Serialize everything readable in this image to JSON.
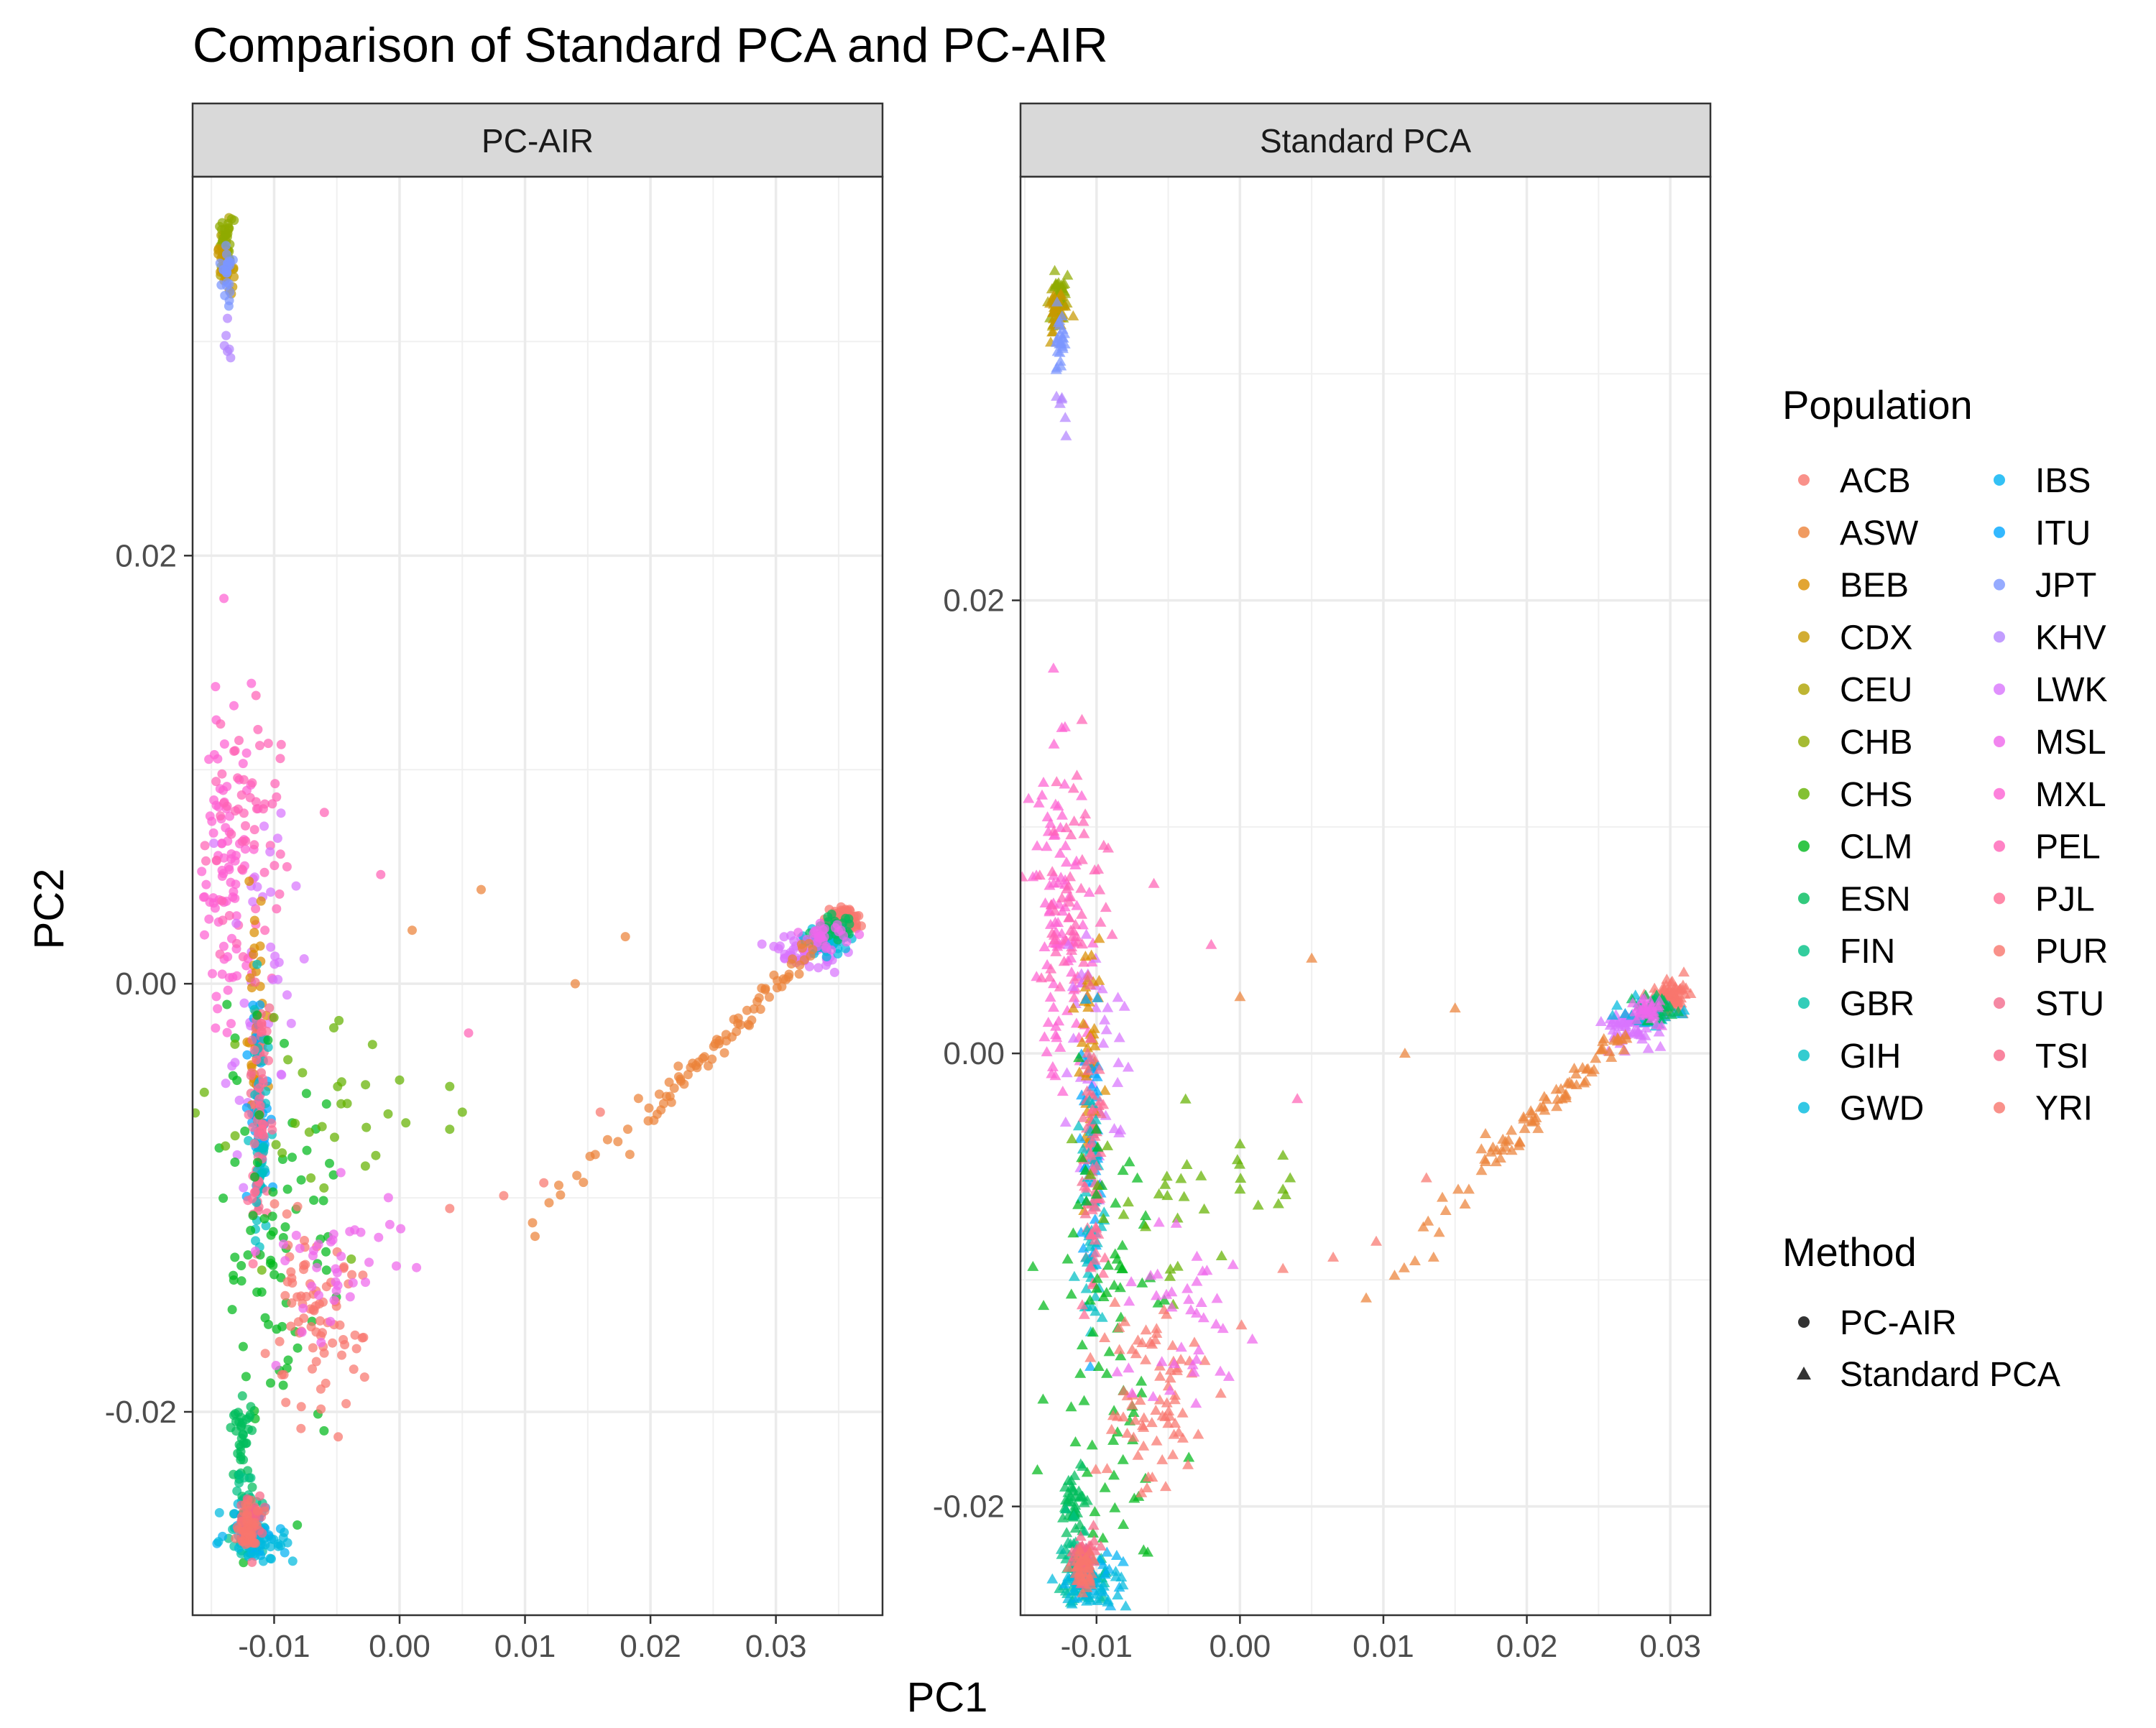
{
  "chart_data": {
    "type": "scatter",
    "title": "Comparison of Standard PCA and PC-AIR",
    "xlabel": "PC1",
    "ylabel": "PC2",
    "grid": true,
    "legend_position": "right",
    "legends": {
      "population_title": "Population",
      "method_title": "Method"
    },
    "populations": [
      {
        "name": "ACB",
        "color": "#F8766D"
      },
      {
        "name": "ASW",
        "color": "#EC8239"
      },
      {
        "name": "BEB",
        "color": "#DB8E00"
      },
      {
        "name": "CDX",
        "color": "#C79800"
      },
      {
        "name": "CEU",
        "color": "#AEA200"
      },
      {
        "name": "CHB",
        "color": "#8FAA00"
      },
      {
        "name": "CHS",
        "color": "#64B200"
      },
      {
        "name": "CLM",
        "color": "#00B81B"
      },
      {
        "name": "ESN",
        "color": "#00BD5C"
      },
      {
        "name": "FIN",
        "color": "#00C085"
      },
      {
        "name": "GBR",
        "color": "#00C1A7"
      },
      {
        "name": "GIH",
        "color": "#00BFC4"
      },
      {
        "name": "GWD",
        "color": "#00BADE"
      },
      {
        "name": "IBS",
        "color": "#00B2F3"
      },
      {
        "name": "ITU",
        "color": "#00A6FF"
      },
      {
        "name": "JPT",
        "color": "#7C96FF"
      },
      {
        "name": "KHV",
        "color": "#B385FF"
      },
      {
        "name": "LWK",
        "color": "#D874FD"
      },
      {
        "name": "MSL",
        "color": "#EF67EB"
      },
      {
        "name": "MXL",
        "color": "#FD61D3"
      },
      {
        "name": "PEL",
        "color": "#FF63B6"
      },
      {
        "name": "PJL",
        "color": "#FF6B94"
      },
      {
        "name": "PUR",
        "color": "#F8766D"
      },
      {
        "name": "STU",
        "color": "#F36A8C"
      },
      {
        "name": "TSI",
        "color": "#F76687"
      },
      {
        "name": "YRI",
        "color": "#F8766D"
      }
    ],
    "methods": [
      {
        "name": "PC-AIR",
        "shape": "circle"
      },
      {
        "name": "Standard PCA",
        "shape": "triangle"
      }
    ],
    "panels": [
      {
        "method": "PC-AIR",
        "strip_label": "PC-AIR",
        "xlim": [
          -0.0165,
          0.0385
        ],
        "ylim": [
          -0.0295,
          0.0377
        ],
        "xticks": [
          -0.01,
          0.0,
          0.01,
          0.02,
          0.03
        ],
        "xtick_labels": [
          "-0.01",
          "0.00",
          "0.01",
          "0.02",
          "0.03"
        ],
        "yticks": [
          -0.02,
          0.0,
          0.02
        ],
        "ytick_labels": [
          "-0.02",
          "0.00",
          "0.02"
        ],
        "clusters": [
          {
            "pop": "CEU",
            "x": -0.0139,
            "y": 0.034,
            "sx": 0.0003,
            "sy": 0.0006,
            "n": 30
          },
          {
            "pop": "CHB",
            "x": -0.0138,
            "y": 0.0345,
            "sx": 0.0003,
            "sy": 0.0006,
            "n": 30
          },
          {
            "pop": "CDX",
            "x": -0.0139,
            "y": 0.0335,
            "sx": 0.0003,
            "sy": 0.0006,
            "n": 25
          },
          {
            "pop": "JPT",
            "x": -0.0138,
            "y": 0.033,
            "sx": 0.0002,
            "sy": 0.0007,
            "n": 25
          },
          {
            "pop": "KHV",
            "x": -0.0137,
            "y": 0.03,
            "sx": 0.0002,
            "sy": 0.0006,
            "n": 6
          },
          {
            "pop": "MXL",
            "x": -0.0135,
            "y": 0.006,
            "sx": 0.0012,
            "sy": 0.004,
            "n": 90
          },
          {
            "pop": "PEL",
            "x": -0.0125,
            "y": 0.007,
            "sx": 0.0015,
            "sy": 0.0035,
            "n": 60
          },
          {
            "pop": "LWK",
            "x": -0.011,
            "y": 0.0,
            "sx": 0.0014,
            "sy": 0.004,
            "n": 40
          },
          {
            "pop": "BEB",
            "x": -0.0115,
            "y": -0.002,
            "sx": 0.0004,
            "sy": 0.0025,
            "n": 40
          },
          {
            "pop": "ITU",
            "x": -0.0112,
            "y": -0.006,
            "sx": 0.0004,
            "sy": 0.003,
            "n": 45
          },
          {
            "pop": "STU",
            "x": -0.0113,
            "y": -0.004,
            "sx": 0.0004,
            "sy": 0.0025,
            "n": 35
          },
          {
            "pop": "GIH",
            "x": -0.0112,
            "y": -0.008,
            "sx": 0.0004,
            "sy": 0.003,
            "n": 45
          },
          {
            "pop": "PJL",
            "x": -0.0112,
            "y": -0.007,
            "sx": 0.0004,
            "sy": 0.0025,
            "n": 40
          },
          {
            "pop": "CLM",
            "x": -0.0095,
            "y": -0.012,
            "sx": 0.0025,
            "sy": 0.005,
            "n": 80
          },
          {
            "pop": "CHS",
            "x": -0.007,
            "y": -0.007,
            "sx": 0.004,
            "sy": 0.0025,
            "n": 30
          },
          {
            "pop": "PUR",
            "x": -0.007,
            "y": -0.016,
            "sx": 0.002,
            "sy": 0.002,
            "n": 80
          },
          {
            "pop": "MSL",
            "x": -0.005,
            "y": -0.013,
            "sx": 0.003,
            "sy": 0.002,
            "n": 40
          },
          {
            "pop": "ESN",
            "x": -0.0125,
            "y": -0.0215,
            "sx": 0.0004,
            "sy": 0.001,
            "n": 40
          },
          {
            "pop": "FIN",
            "x": -0.0122,
            "y": -0.0245,
            "sx": 0.0006,
            "sy": 0.0008,
            "n": 35
          },
          {
            "pop": "GBR",
            "x": -0.0118,
            "y": -0.026,
            "sx": 0.0008,
            "sy": 0.0006,
            "n": 35
          },
          {
            "pop": "IBS",
            "x": -0.0115,
            "y": -0.0255,
            "sx": 0.0012,
            "sy": 0.0006,
            "n": 35
          },
          {
            "pop": "GWD",
            "x": -0.0112,
            "y": -0.026,
            "sx": 0.0015,
            "sy": 0.0006,
            "n": 30
          },
          {
            "pop": "TSI",
            "x": -0.0118,
            "y": -0.025,
            "sx": 0.0005,
            "sy": 0.0006,
            "n": 40
          },
          {
            "pop": "YRI",
            "x": -0.012,
            "y": -0.0255,
            "sx": 0.0005,
            "sy": 0.0005,
            "n": 40
          },
          {
            "pop": "ACB",
            "x": 0.0355,
            "y": 0.003,
            "sx": 0.0006,
            "sy": 0.0003,
            "n": 60
          },
          {
            "pop": "YRI",
            "x": 0.0353,
            "y": 0.0028,
            "sx": 0.0006,
            "sy": 0.0003,
            "n": 40
          },
          {
            "pop": "LWK",
            "x": 0.0325,
            "y": 0.0015,
            "sx": 0.0012,
            "sy": 0.0004,
            "n": 60
          },
          {
            "pop": "GWD",
            "x": 0.034,
            "y": 0.002,
            "sx": 0.001,
            "sy": 0.0003,
            "n": 40
          },
          {
            "pop": "ESN",
            "x": 0.0345,
            "y": 0.0025,
            "sx": 0.0008,
            "sy": 0.0003,
            "n": 30
          },
          {
            "pop": "MSL",
            "x": 0.0338,
            "y": 0.0022,
            "sx": 0.0008,
            "sy": 0.0003,
            "n": 30
          }
        ],
        "lines": [
          {
            "pop": "ASW",
            "x0": 0.02,
            "y0": -0.006,
            "x1": 0.033,
            "y1": 0.0015,
            "n": 70,
            "jitter": 0.0003
          },
          {
            "pop": "ASW",
            "x0": 0.011,
            "y0": -0.011,
            "x1": 0.02,
            "y1": -0.006,
            "n": 14,
            "jitter": 0.0006
          }
        ],
        "points": [
          {
            "pop": "MXL",
            "x": -0.014,
            "y": 0.018
          },
          {
            "pop": "PEL",
            "x": -0.006,
            "y": 0.008
          },
          {
            "pop": "PEL",
            "x": -0.0015,
            "y": 0.0051
          },
          {
            "pop": "ASW",
            "x": 0.001,
            "y": 0.0025
          },
          {
            "pop": "ASW",
            "x": 0.0065,
            "y": 0.0044
          },
          {
            "pop": "ASW",
            "x": 0.018,
            "y": 0.0022
          },
          {
            "pop": "ASW",
            "x": 0.014,
            "y": 0.0
          },
          {
            "pop": "ASW",
            "x": 0.0108,
            "y": -0.0118
          },
          {
            "pop": "PUR",
            "x": 0.0083,
            "y": -0.0099
          },
          {
            "pop": "PUR",
            "x": 0.0115,
            "y": -0.0093
          },
          {
            "pop": "PUR",
            "x": 0.004,
            "y": -0.0105
          },
          {
            "pop": "PEL",
            "x": 0.0055,
            "y": -0.0023
          },
          {
            "pop": "CHS",
            "x": 0.0,
            "y": -0.0045
          },
          {
            "pop": "CHS",
            "x": 0.004,
            "y": -0.0048
          },
          {
            "pop": "CHS",
            "x": 0.005,
            "y": -0.006
          },
          {
            "pop": "CHS",
            "x": 0.004,
            "y": -0.0068
          },
          {
            "pop": "CHS",
            "x": 0.0005,
            "y": -0.0065
          },
          {
            "pop": "PUR",
            "x": 0.016,
            "y": -0.006
          }
        ]
      },
      {
        "method": "Standard PCA",
        "strip_label": "Standard PCA",
        "xlim": [
          -0.0153,
          0.0328
        ],
        "ylim": [
          -0.0248,
          0.0387
        ],
        "xticks": [
          -0.01,
          0.0,
          0.01,
          0.02,
          0.03
        ],
        "xtick_labels": [
          "-0.01",
          "0.00",
          "0.01",
          "0.02",
          "0.03"
        ],
        "yticks": [
          -0.02,
          0.0,
          0.02
        ],
        "ytick_labels": [
          "-0.02",
          "0.00",
          "0.02"
        ],
        "clusters": [
          {
            "pop": "CEU",
            "x": -0.0127,
            "y": 0.033,
            "sx": 0.0003,
            "sy": 0.0006,
            "n": 30
          },
          {
            "pop": "CHB",
            "x": -0.0126,
            "y": 0.0335,
            "sx": 0.0003,
            "sy": 0.0006,
            "n": 30
          },
          {
            "pop": "CDX",
            "x": -0.0127,
            "y": 0.0325,
            "sx": 0.0003,
            "sy": 0.0006,
            "n": 25
          },
          {
            "pop": "JPT",
            "x": -0.0126,
            "y": 0.0315,
            "sx": 0.0002,
            "sy": 0.0007,
            "n": 25
          },
          {
            "pop": "KHV",
            "x": -0.0126,
            "y": 0.0285,
            "sx": 0.0002,
            "sy": 0.0006,
            "n": 6
          },
          {
            "pop": "MXL",
            "x": -0.0125,
            "y": 0.006,
            "sx": 0.001,
            "sy": 0.0035,
            "n": 90
          },
          {
            "pop": "PEL",
            "x": -0.0115,
            "y": 0.007,
            "sx": 0.0012,
            "sy": 0.003,
            "n": 60
          },
          {
            "pop": "LWK",
            "x": -0.01,
            "y": 0.0005,
            "sx": 0.0012,
            "sy": 0.0035,
            "n": 40
          },
          {
            "pop": "BEB",
            "x": -0.0104,
            "y": -0.001,
            "sx": 0.0004,
            "sy": 0.0025,
            "n": 40
          },
          {
            "pop": "ITU",
            "x": -0.0103,
            "y": -0.005,
            "sx": 0.0004,
            "sy": 0.003,
            "n": 45
          },
          {
            "pop": "STU",
            "x": -0.0104,
            "y": -0.003,
            "sx": 0.0004,
            "sy": 0.0025,
            "n": 35
          },
          {
            "pop": "GIH",
            "x": -0.0103,
            "y": -0.007,
            "sx": 0.0004,
            "sy": 0.003,
            "n": 45
          },
          {
            "pop": "PJL",
            "x": -0.0103,
            "y": -0.0065,
            "sx": 0.0004,
            "sy": 0.0025,
            "n": 40
          },
          {
            "pop": "CLM",
            "x": -0.009,
            "y": -0.012,
            "sx": 0.002,
            "sy": 0.005,
            "n": 80
          },
          {
            "pop": "CHS",
            "x": -0.006,
            "y": -0.006,
            "sx": 0.0035,
            "sy": 0.0025,
            "n": 30
          },
          {
            "pop": "PUR",
            "x": -0.0065,
            "y": -0.015,
            "sx": 0.002,
            "sy": 0.0025,
            "n": 80
          },
          {
            "pop": "MSL",
            "x": -0.004,
            "y": -0.012,
            "sx": 0.0025,
            "sy": 0.002,
            "n": 40
          },
          {
            "pop": "ESN",
            "x": -0.0115,
            "y": -0.02,
            "sx": 0.0004,
            "sy": 0.001,
            "n": 40
          },
          {
            "pop": "FIN",
            "x": -0.0112,
            "y": -0.0225,
            "sx": 0.0006,
            "sy": 0.0008,
            "n": 35
          },
          {
            "pop": "GBR",
            "x": -0.0108,
            "y": -0.0235,
            "sx": 0.0007,
            "sy": 0.0005,
            "n": 35
          },
          {
            "pop": "IBS",
            "x": -0.0105,
            "y": -0.023,
            "sx": 0.001,
            "sy": 0.0005,
            "n": 35
          },
          {
            "pop": "GWD",
            "x": -0.0103,
            "y": -0.0235,
            "sx": 0.0012,
            "sy": 0.0005,
            "n": 30
          },
          {
            "pop": "TSI",
            "x": -0.0108,
            "y": -0.0222,
            "sx": 0.0004,
            "sy": 0.0005,
            "n": 40
          },
          {
            "pop": "YRI",
            "x": -0.011,
            "y": -0.0228,
            "sx": 0.0004,
            "sy": 0.0005,
            "n": 40
          },
          {
            "pop": "ACB",
            "x": 0.03,
            "y": 0.0025,
            "sx": 0.0006,
            "sy": 0.0003,
            "n": 60
          },
          {
            "pop": "YRI",
            "x": 0.0298,
            "y": 0.0023,
            "sx": 0.0006,
            "sy": 0.0003,
            "n": 40
          },
          {
            "pop": "LWK",
            "x": 0.027,
            "y": 0.0012,
            "sx": 0.001,
            "sy": 0.0004,
            "n": 60
          },
          {
            "pop": "GWD",
            "x": 0.0285,
            "y": 0.0018,
            "sx": 0.0009,
            "sy": 0.0003,
            "n": 40
          },
          {
            "pop": "ESN",
            "x": 0.029,
            "y": 0.002,
            "sx": 0.0007,
            "sy": 0.0003,
            "n": 30
          },
          {
            "pop": "MSL",
            "x": 0.0283,
            "y": 0.0019,
            "sx": 0.0007,
            "sy": 0.0003,
            "n": 30
          }
        ],
        "lines": [
          {
            "pop": "ASW",
            "x0": 0.017,
            "y0": -0.005,
            "x1": 0.027,
            "y1": 0.001,
            "n": 70,
            "jitter": 0.0003
          },
          {
            "pop": "ASW",
            "x0": 0.011,
            "y0": -0.0095,
            "x1": 0.017,
            "y1": -0.005,
            "n": 14,
            "jitter": 0.0006
          }
        ],
        "points": [
          {
            "pop": "MXL",
            "x": -0.013,
            "y": 0.017
          },
          {
            "pop": "PEL",
            "x": -0.006,
            "y": 0.0075
          },
          {
            "pop": "PEL",
            "x": -0.002,
            "y": 0.0048
          },
          {
            "pop": "ASW",
            "x": 0.0,
            "y": 0.0025
          },
          {
            "pop": "ASW",
            "x": 0.005,
            "y": 0.0042
          },
          {
            "pop": "ASW",
            "x": 0.015,
            "y": 0.002
          },
          {
            "pop": "ASW",
            "x": 0.0115,
            "y": 0.0
          },
          {
            "pop": "ASW",
            "x": 0.0088,
            "y": -0.0108
          },
          {
            "pop": "PUR",
            "x": 0.0065,
            "y": -0.009
          },
          {
            "pop": "PUR",
            "x": 0.0095,
            "y": -0.0083
          },
          {
            "pop": "PUR",
            "x": 0.003,
            "y": -0.0095
          },
          {
            "pop": "PEL",
            "x": 0.004,
            "y": -0.002
          },
          {
            "pop": "CHS",
            "x": 0.0,
            "y": -0.004
          },
          {
            "pop": "CHS",
            "x": 0.003,
            "y": -0.0045
          },
          {
            "pop": "CHS",
            "x": 0.0035,
            "y": -0.0055
          },
          {
            "pop": "CHS",
            "x": 0.003,
            "y": -0.006
          },
          {
            "pop": "CHS",
            "x": 0.0,
            "y": -0.006
          },
          {
            "pop": "PUR",
            "x": 0.013,
            "y": -0.0055
          }
        ]
      }
    ]
  }
}
